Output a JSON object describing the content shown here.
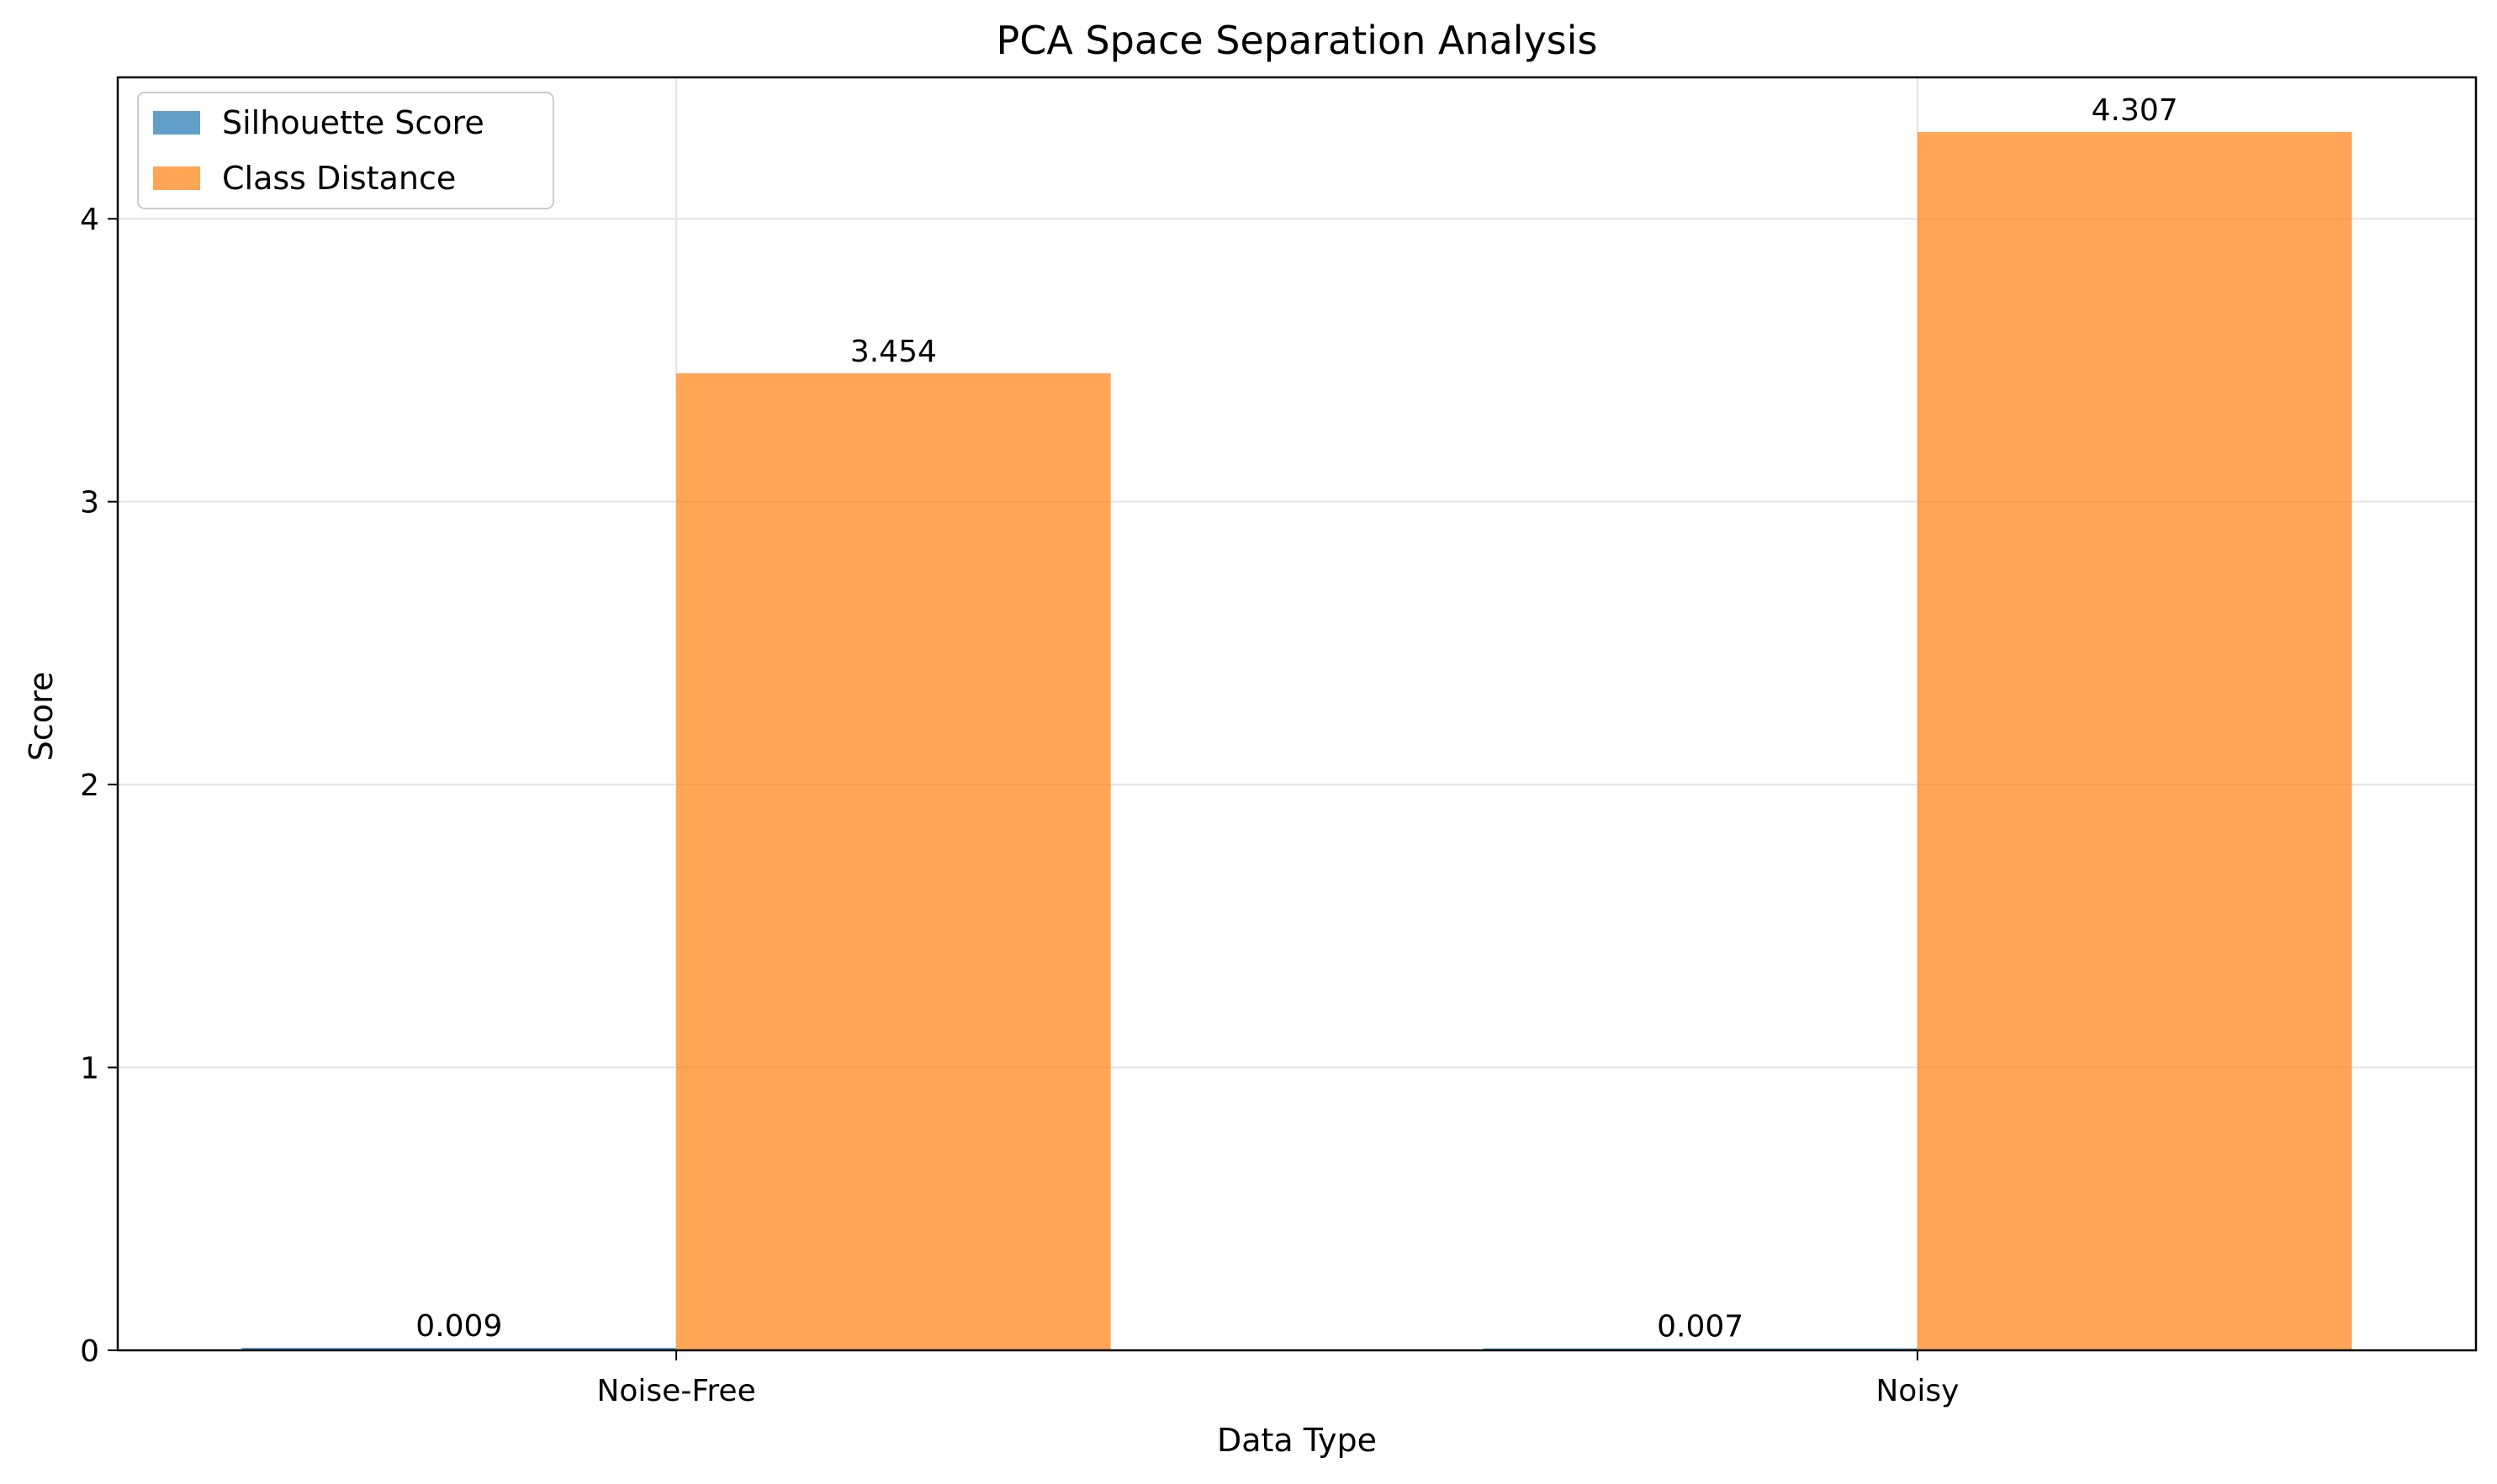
{
  "chart_data": {
    "type": "bar",
    "title": "PCA Space Separation Analysis",
    "xlabel": "Data Type",
    "ylabel": "Score",
    "categories": [
      "Noise-Free",
      "Noisy"
    ],
    "series": [
      {
        "name": "Silhouette Score",
        "values": [
          0.009,
          0.007
        ],
        "labels": [
          "0.009",
          "0.007"
        ],
        "color": "#1f77b4"
      },
      {
        "name": "Class Distance",
        "values": [
          3.454,
          4.307
        ],
        "labels": [
          "3.454",
          "4.307"
        ],
        "color": "#ff7f0e"
      }
    ],
    "ylim": [
      0,
      4.5
    ],
    "yticks": [
      "0",
      "1",
      "2",
      "3",
      "4"
    ],
    "grid": true,
    "legend_position": "upper-left"
  }
}
